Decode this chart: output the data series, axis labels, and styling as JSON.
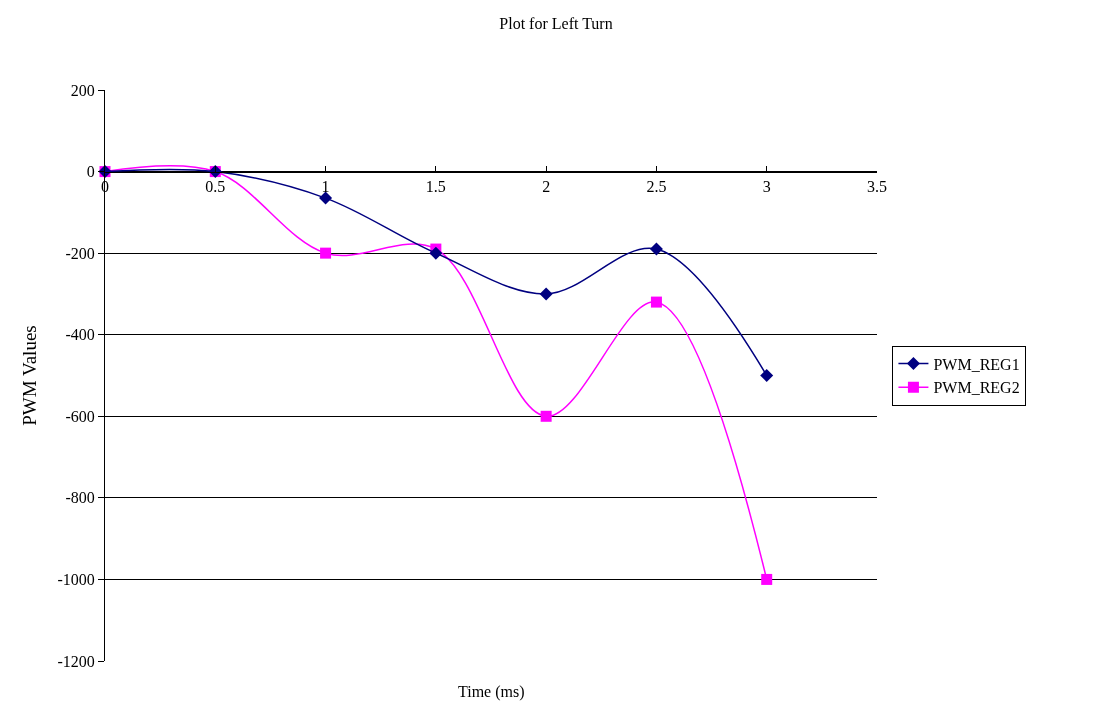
{
  "chart_data": {
    "type": "line",
    "title": "Plot for Left Turn",
    "xlabel": "Time (ms)",
    "ylabel": "PWM Values",
    "x": [
      0,
      0.5,
      1,
      1.5,
      2,
      2.5,
      3
    ],
    "series": [
      {
        "name": "PWM_REG1",
        "color": "#000080",
        "marker": "diamond",
        "values": [
          0,
          0,
          -65,
          -200,
          -300,
          -190,
          -500
        ]
      },
      {
        "name": "PWM_REG2",
        "color": "#ff00ff",
        "marker": "square",
        "values": [
          0,
          0,
          -200,
          -190,
          -600,
          -320,
          -1000
        ]
      }
    ],
    "xlim": [
      0,
      3.5
    ],
    "xticks": [
      0,
      0.5,
      1,
      1.5,
      2,
      2.5,
      3,
      3.5
    ],
    "ylim": [
      -1200,
      200
    ],
    "yticks": [
      -1200,
      -1000,
      -800,
      -600,
      -400,
      -200,
      0,
      200
    ],
    "grid": "y",
    "legend": "right",
    "line_style": "solid"
  }
}
